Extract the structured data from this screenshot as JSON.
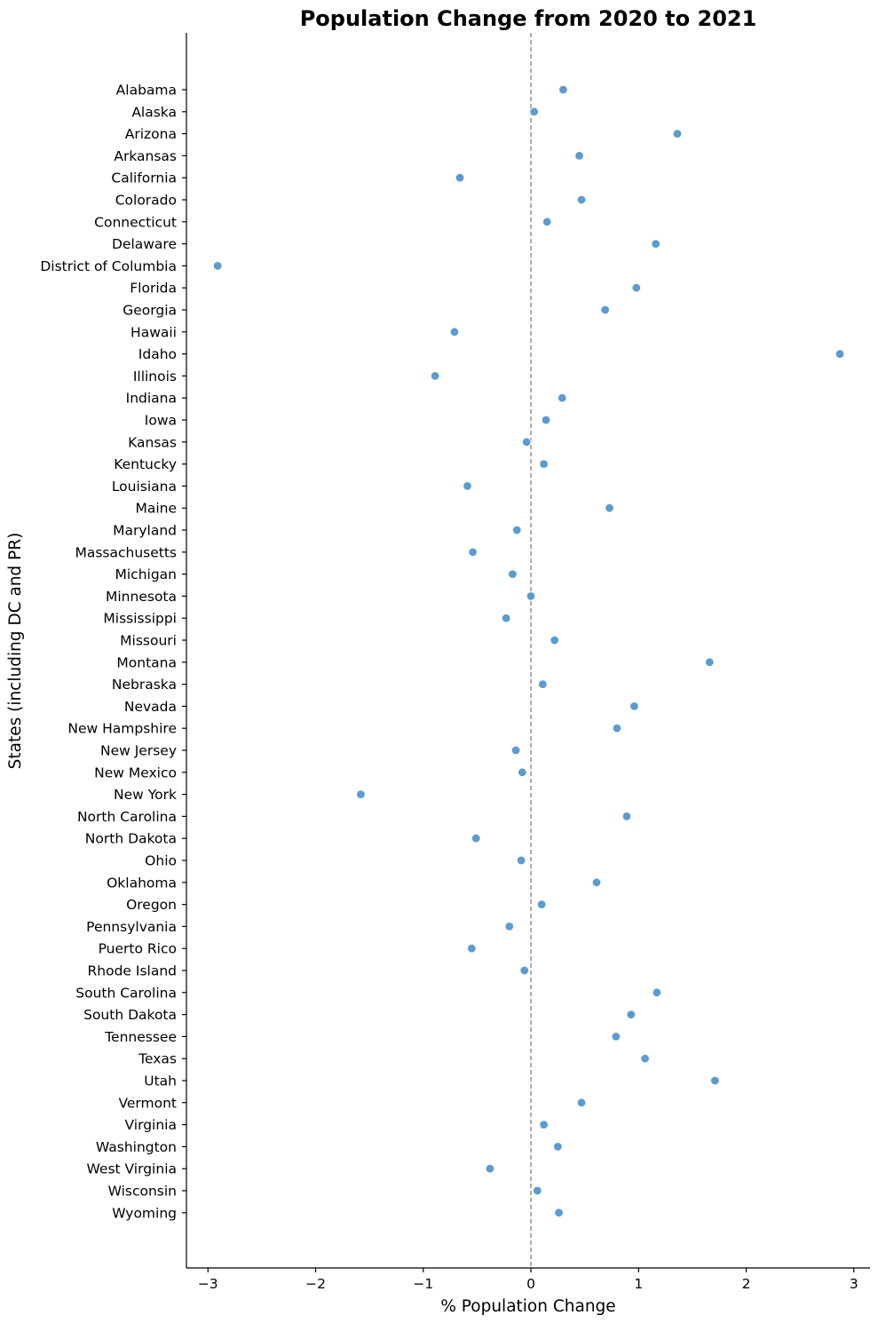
{
  "chart_data": {
    "type": "scatter",
    "title": "Population Change from 2020 to 2021",
    "xlabel": "% Population Change",
    "ylabel": "States (including DC and PR)",
    "xlim": [
      -3.2,
      3.15
    ],
    "xticks": [
      -3,
      -2,
      -1,
      0,
      1,
      2,
      3
    ],
    "xtick_labels": [
      "−3",
      "−2",
      "−1",
      "0",
      "1",
      "2",
      "3"
    ],
    "reference_line": {
      "x": 0,
      "style": "dashed",
      "color": "#808080"
    },
    "point_color": "#5b9bcf",
    "grid": false,
    "points": [
      {
        "state": "Alabama",
        "value": 0.3
      },
      {
        "state": "Alaska",
        "value": 0.03
      },
      {
        "state": "Arizona",
        "value": 1.36
      },
      {
        "state": "Arkansas",
        "value": 0.45
      },
      {
        "state": "California",
        "value": -0.66
      },
      {
        "state": "Colorado",
        "value": 0.47
      },
      {
        "state": "Connecticut",
        "value": 0.15
      },
      {
        "state": "Delaware",
        "value": 1.16
      },
      {
        "state": "District of Columbia",
        "value": -2.91
      },
      {
        "state": "Florida",
        "value": 0.98
      },
      {
        "state": "Georgia",
        "value": 0.69
      },
      {
        "state": "Hawaii",
        "value": -0.71
      },
      {
        "state": "Idaho",
        "value": 2.87
      },
      {
        "state": "Illinois",
        "value": -0.89
      },
      {
        "state": "Indiana",
        "value": 0.29
      },
      {
        "state": "Iowa",
        "value": 0.14
      },
      {
        "state": "Kansas",
        "value": -0.04
      },
      {
        "state": "Kentucky",
        "value": 0.12
      },
      {
        "state": "Louisiana",
        "value": -0.59
      },
      {
        "state": "Maine",
        "value": 0.73
      },
      {
        "state": "Maryland",
        "value": -0.13
      },
      {
        "state": "Massachusetts",
        "value": -0.54
      },
      {
        "state": "Michigan",
        "value": -0.17
      },
      {
        "state": "Minnesota",
        "value": 0.0
      },
      {
        "state": "Mississippi",
        "value": -0.23
      },
      {
        "state": "Missouri",
        "value": 0.22
      },
      {
        "state": "Montana",
        "value": 1.66
      },
      {
        "state": "Nebraska",
        "value": 0.11
      },
      {
        "state": "Nevada",
        "value": 0.96
      },
      {
        "state": "New Hampshire",
        "value": 0.8
      },
      {
        "state": "New Jersey",
        "value": -0.14
      },
      {
        "state": "New Mexico",
        "value": -0.08
      },
      {
        "state": "New York",
        "value": -1.58
      },
      {
        "state": "North Carolina",
        "value": 0.89
      },
      {
        "state": "North Dakota",
        "value": -0.51
      },
      {
        "state": "Ohio",
        "value": -0.09
      },
      {
        "state": "Oklahoma",
        "value": 0.61
      },
      {
        "state": "Oregon",
        "value": 0.1
      },
      {
        "state": "Pennsylvania",
        "value": -0.2
      },
      {
        "state": "Puerto Rico",
        "value": -0.55
      },
      {
        "state": "Rhode Island",
        "value": -0.06
      },
      {
        "state": "South Carolina",
        "value": 1.17
      },
      {
        "state": "South Dakota",
        "value": 0.93
      },
      {
        "state": "Tennessee",
        "value": 0.79
      },
      {
        "state": "Texas",
        "value": 1.06
      },
      {
        "state": "Utah",
        "value": 1.71
      },
      {
        "state": "Vermont",
        "value": 0.47
      },
      {
        "state": "Virginia",
        "value": 0.12
      },
      {
        "state": "Washington",
        "value": 0.25
      },
      {
        "state": "West Virginia",
        "value": -0.38
      },
      {
        "state": "Wisconsin",
        "value": 0.06
      },
      {
        "state": "Wyoming",
        "value": 0.26
      }
    ]
  }
}
